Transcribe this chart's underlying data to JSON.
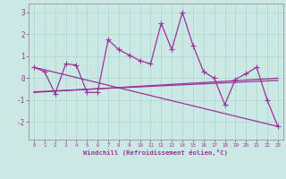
{
  "xlabel": "Windchill (Refroidissement éolien,°C)",
  "y_main": [
    0.5,
    0.3,
    -0.7,
    0.65,
    0.6,
    -0.65,
    -0.65,
    1.75,
    1.3,
    1.05,
    0.8,
    0.65,
    2.5,
    1.3,
    3.0,
    1.5,
    0.3,
    0.0,
    -1.2,
    -0.05,
    0.2,
    0.5,
    -1.0,
    -2.2
  ],
  "reg_down": [
    0.5,
    -2.2
  ],
  "reg_flat1": [
    -0.65,
    0.0
  ],
  "reg_flat2": [
    -0.62,
    -0.1
  ],
  "ylim": [
    -2.8,
    3.4
  ],
  "yticks": [
    -2,
    -1,
    0,
    1,
    2,
    3
  ],
  "bg_color": "#cce8e4",
  "line_color": "#993399",
  "grid_color": "#aad8d0",
  "marker": "+",
  "markersize": 4,
  "linewidth": 0.9
}
